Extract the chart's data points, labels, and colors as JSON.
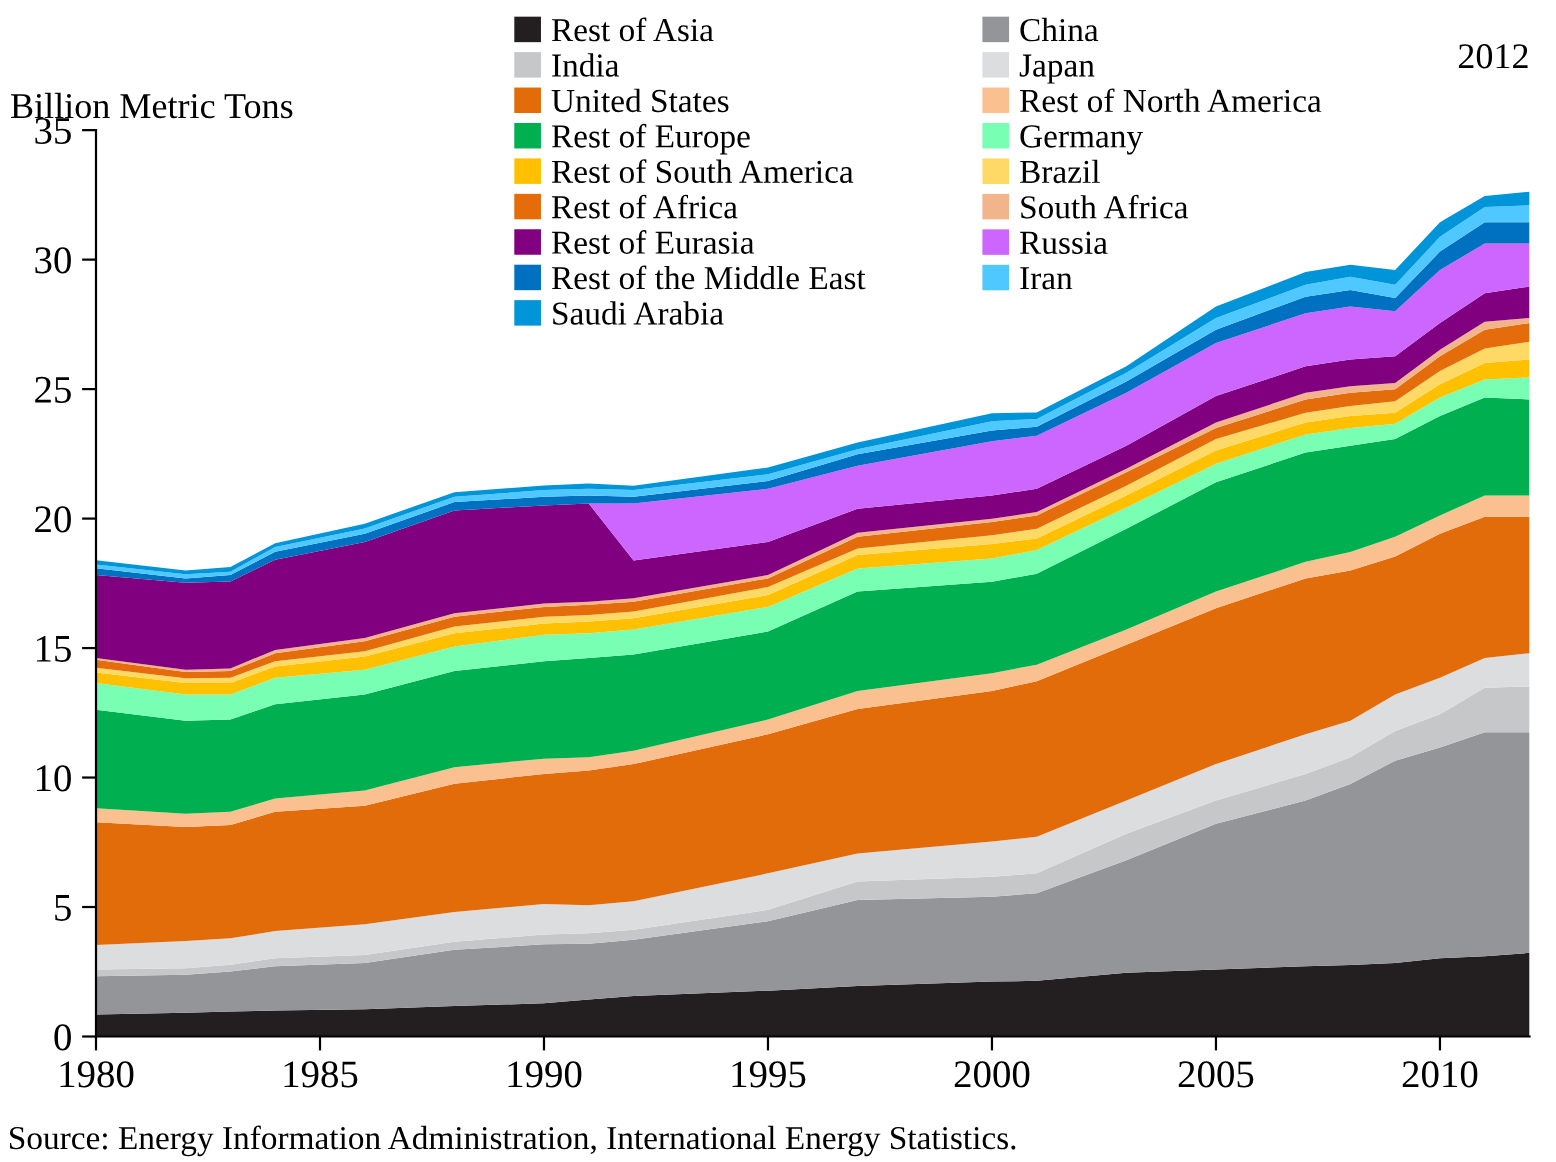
{
  "chart_data": {
    "type": "area",
    "stacked": true,
    "ylabel": "Billion Metric Tons",
    "legend": "top",
    "x": [
      1980,
      1982,
      1983,
      1984,
      1986,
      1988,
      1990,
      1991,
      1992,
      1995,
      1997,
      2000,
      2001,
      2003,
      2005,
      2007,
      2008,
      2009,
      2010,
      2011,
      2012
    ],
    "xlim": [
      1980,
      2012
    ],
    "xticks": [
      1980,
      1985,
      1990,
      1995,
      2000,
      2005,
      2010
    ],
    "ylim": [
      0,
      35
    ],
    "yticks": [
      0,
      5,
      10,
      15,
      20,
      25,
      30,
      35
    ],
    "grid": false,
    "annotations": [
      "2012",
      "Source: Energy Information Administration, International Energy Statistics."
    ],
    "series": [
      {
        "name": "Rest of Asia",
        "color": "#231f20",
        "values": [
          0.85,
          0.92,
          0.97,
          1.0,
          1.05,
          1.18,
          1.28,
          1.43,
          1.56,
          1.77,
          1.95,
          2.12,
          2.15,
          2.46,
          2.59,
          2.71,
          2.76,
          2.84,
          3.02,
          3.1,
          3.23
        ]
      },
      {
        "name": "China",
        "color": "#939598",
        "values": [
          1.48,
          1.46,
          1.54,
          1.71,
          1.79,
          2.17,
          2.28,
          2.15,
          2.18,
          2.68,
          3.32,
          3.28,
          3.38,
          4.35,
          5.63,
          6.4,
          6.99,
          7.81,
          8.14,
          8.65,
          8.52
        ]
      },
      {
        "name": "India",
        "color": "#c6c7c9",
        "values": [
          0.26,
          0.26,
          0.26,
          0.31,
          0.31,
          0.31,
          0.38,
          0.41,
          0.38,
          0.44,
          0.72,
          0.77,
          0.77,
          1.02,
          0.89,
          1.03,
          1.03,
          1.15,
          1.28,
          1.72,
          1.77
        ]
      },
      {
        "name": "Japan",
        "color": "#dcddde",
        "values": [
          0.94,
          1.05,
          1.02,
          1.05,
          1.18,
          1.15,
          1.18,
          1.08,
          1.1,
          1.41,
          1.08,
          1.36,
          1.41,
          1.28,
          1.41,
          1.53,
          1.41,
          1.41,
          1.41,
          1.15,
          1.28
        ]
      },
      {
        "name": "United States",
        "color": "#e36c0a",
        "values": [
          4.74,
          4.4,
          4.38,
          4.61,
          4.58,
          4.95,
          5.02,
          5.2,
          5.3,
          5.37,
          5.58,
          5.81,
          6.01,
          6.02,
          6.02,
          6.02,
          5.81,
          5.33,
          5.56,
          5.45,
          5.27
        ]
      },
      {
        "name": "Rest of North America",
        "color": "#fac090",
        "values": [
          0.54,
          0.51,
          0.51,
          0.51,
          0.59,
          0.64,
          0.59,
          0.51,
          0.51,
          0.57,
          0.69,
          0.69,
          0.64,
          0.59,
          0.64,
          0.64,
          0.71,
          0.76,
          0.71,
          0.82,
          0.82
        ]
      },
      {
        "name": "Rest of Europe",
        "color": "#00b050",
        "values": [
          3.81,
          3.59,
          3.56,
          3.64,
          3.71,
          3.71,
          3.76,
          3.84,
          3.72,
          3.4,
          3.84,
          3.53,
          3.51,
          3.89,
          4.22,
          4.22,
          4.1,
          3.77,
          3.84,
          3.79,
          3.71
        ]
      },
      {
        "name": "Germany",
        "color": "#79ffb4",
        "values": [
          1.03,
          1.02,
          0.97,
          1.02,
          0.95,
          0.95,
          1.02,
          0.95,
          0.97,
          0.95,
          0.89,
          0.9,
          0.92,
          0.82,
          0.72,
          0.7,
          0.69,
          0.59,
          0.72,
          0.69,
          0.85
        ]
      },
      {
        "name": "Rest of South America",
        "color": "#ffc000",
        "values": [
          0.41,
          0.44,
          0.44,
          0.44,
          0.51,
          0.51,
          0.44,
          0.46,
          0.43,
          0.46,
          0.52,
          0.56,
          0.44,
          0.46,
          0.51,
          0.46,
          0.46,
          0.43,
          0.51,
          0.64,
          0.69
        ]
      },
      {
        "name": "Brazil",
        "color": "#ffd966",
        "values": [
          0.18,
          0.18,
          0.2,
          0.2,
          0.21,
          0.26,
          0.26,
          0.25,
          0.26,
          0.31,
          0.25,
          0.34,
          0.38,
          0.38,
          0.44,
          0.38,
          0.39,
          0.44,
          0.51,
          0.56,
          0.69
        ]
      },
      {
        "name": "Rest of Africa",
        "color": "#e46c0a",
        "values": [
          0.31,
          0.25,
          0.26,
          0.31,
          0.38,
          0.38,
          0.38,
          0.39,
          0.38,
          0.33,
          0.46,
          0.51,
          0.51,
          0.52,
          0.43,
          0.51,
          0.51,
          0.46,
          0.57,
          0.72,
          0.72
        ]
      },
      {
        "name": "South Africa",
        "color": "#f2b48a",
        "values": [
          0.07,
          0.08,
          0.1,
          0.13,
          0.13,
          0.13,
          0.13,
          0.12,
          0.13,
          0.13,
          0.15,
          0.12,
          0.13,
          0.13,
          0.21,
          0.26,
          0.25,
          0.25,
          0.25,
          0.31,
          0.2
        ]
      },
      {
        "name": "Rest of Eurasia",
        "color": "#800080",
        "values": [
          3.2,
          3.36,
          3.36,
          3.48,
          3.71,
          3.97,
          3.79,
          3.79,
          1.46,
          1.28,
          0.93,
          0.9,
          0.9,
          0.89,
          1.02,
          1.02,
          1.03,
          1.03,
          1.03,
          1.1,
          1.21
        ]
      },
      {
        "name": "Russia",
        "color": "#cc66ff",
        "values": [
          0,
          0,
          0,
          0,
          0,
          0,
          0,
          0,
          2.2,
          2.05,
          1.66,
          2.1,
          2.05,
          2.05,
          2.05,
          2.05,
          2.05,
          1.74,
          2.05,
          1.92,
          1.66
        ]
      },
      {
        "name": "Rest of the Middle East",
        "color": "#0070c0",
        "values": [
          0.26,
          0.17,
          0.25,
          0.31,
          0.31,
          0.33,
          0.33,
          0.31,
          0.26,
          0.3,
          0.44,
          0.41,
          0.35,
          0.43,
          0.51,
          0.64,
          0.64,
          0.51,
          0.71,
          0.82,
          0.82
        ]
      },
      {
        "name": "Iran",
        "color": "#4fc8ff",
        "values": [
          0.15,
          0.16,
          0.13,
          0.18,
          0.21,
          0.2,
          0.26,
          0.26,
          0.26,
          0.26,
          0.2,
          0.36,
          0.3,
          0.34,
          0.46,
          0.46,
          0.51,
          0.51,
          0.57,
          0.59,
          0.66
        ]
      },
      {
        "name": "Saudi Arabia",
        "color": "#0095d9",
        "values": [
          0.16,
          0.15,
          0.18,
          0.15,
          0.18,
          0.18,
          0.18,
          0.2,
          0.17,
          0.26,
          0.26,
          0.31,
          0.25,
          0.25,
          0.44,
          0.49,
          0.46,
          0.57,
          0.56,
          0.43,
          0.52
        ]
      }
    ]
  }
}
